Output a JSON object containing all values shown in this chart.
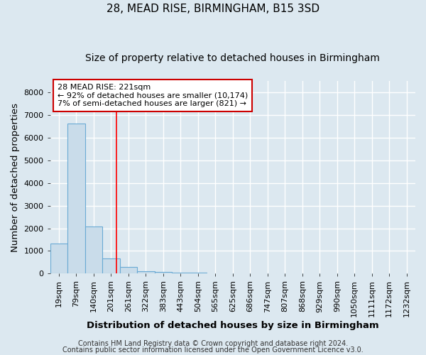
{
  "title": "28, MEAD RISE, BIRMINGHAM, B15 3SD",
  "subtitle": "Size of property relative to detached houses in Birmingham",
  "xlabel": "Distribution of detached houses by size in Birmingham",
  "ylabel": "Number of detached properties",
  "bin_labels": [
    "19sqm",
    "79sqm",
    "140sqm",
    "201sqm",
    "261sqm",
    "322sqm",
    "383sqm",
    "443sqm",
    "504sqm",
    "565sqm",
    "625sqm",
    "686sqm",
    "747sqm",
    "807sqm",
    "868sqm",
    "929sqm",
    "990sqm",
    "1050sqm",
    "1111sqm",
    "1172sqm",
    "1232sqm"
  ],
  "bar_heights": [
    1320,
    6600,
    2080,
    670,
    300,
    120,
    80,
    55,
    55,
    0,
    0,
    0,
    0,
    0,
    0,
    0,
    0,
    0,
    0,
    0,
    0
  ],
  "bar_color": "#c9dcea",
  "bar_edge_color": "#6aaad4",
  "red_line_x": 3.3,
  "ylim": [
    0,
    8500
  ],
  "yticks": [
    0,
    1000,
    2000,
    3000,
    4000,
    5000,
    6000,
    7000,
    8000
  ],
  "annotation_text": "28 MEAD RISE: 221sqm\n← 92% of detached houses are smaller (10,174)\n7% of semi-detached houses are larger (821) →",
  "annotation_box_color": "#ffffff",
  "annotation_box_edge": "#cc0000",
  "footer_line1": "Contains HM Land Registry data © Crown copyright and database right 2024.",
  "footer_line2": "Contains public sector information licensed under the Open Government Licence v3.0.",
  "background_color": "#dce8f0",
  "grid_color": "#ffffff",
  "title_fontsize": 11,
  "subtitle_fontsize": 10,
  "axis_label_fontsize": 9.5,
  "tick_fontsize": 8,
  "footer_fontsize": 7
}
